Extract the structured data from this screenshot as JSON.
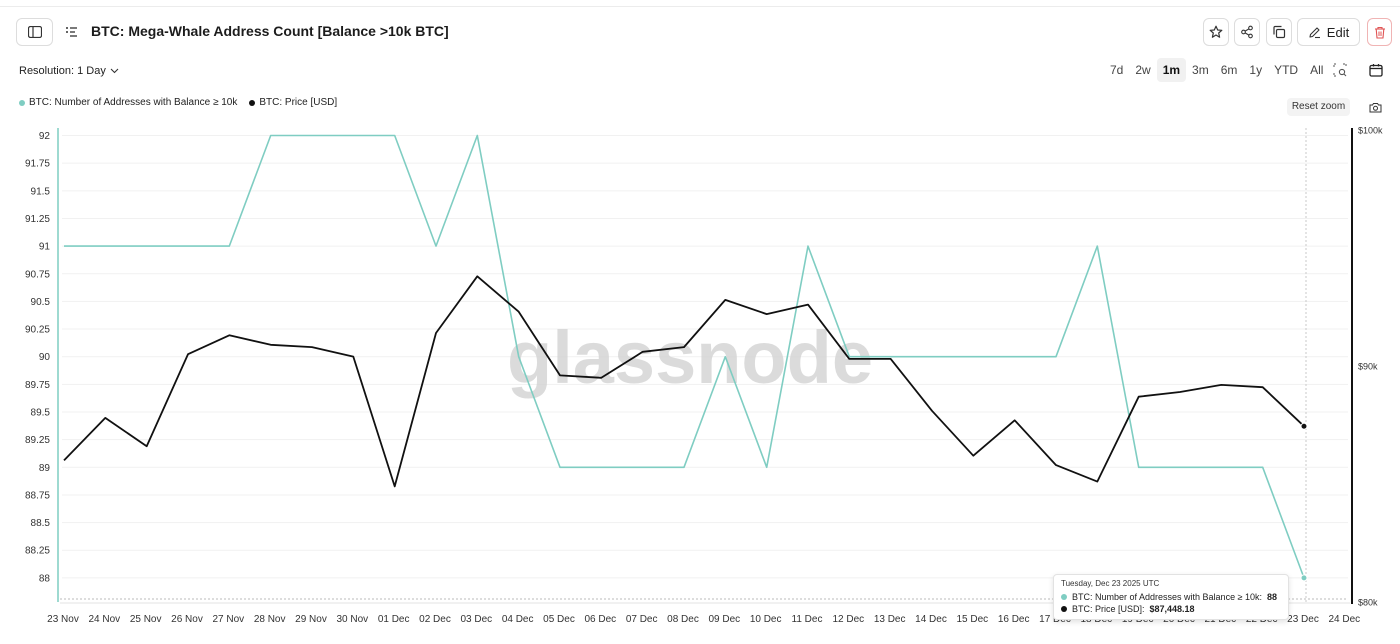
{
  "header": {
    "title": "BTC: Mega-Whale Address Count [Balance >10k BTC]",
    "edit_label": "Edit"
  },
  "icons": {
    "sidebar": "sidebar-toggle-icon",
    "list": "list-icon",
    "star": "star-icon",
    "share": "share-icon",
    "copy": "copy-icon",
    "edit": "pencil-icon",
    "delete": "trash-icon",
    "calendar": "calendar-icon",
    "camera": "camera-icon",
    "zoom": "zoom-select-icon",
    "chevron": "chevron-down-icon"
  },
  "controls": {
    "resolution_label": "Resolution: 1 Day",
    "ranges": [
      "7d",
      "2w",
      "1m",
      "3m",
      "6m",
      "1y",
      "YTD",
      "All"
    ],
    "active_range": "1m",
    "reset_zoom_label": "Reset zoom"
  },
  "colors": {
    "addresses": "#7fcdc2",
    "price": "#111111",
    "delete": "#e05454",
    "watermark": "#d0d0d0"
  },
  "watermark": "glassnode",
  "tooltip": {
    "date": "Tuesday, Dec 23 2025 UTC",
    "rows": [
      {
        "label": "BTC: Number of Addresses with Balance ≥ 10k:",
        "value": "88"
      },
      {
        "label": "BTC: Price [USD]:",
        "value": "$87,448.18"
      }
    ]
  },
  "chart_data": {
    "type": "line",
    "x": [
      "23 Nov",
      "24 Nov",
      "25 Nov",
      "26 Nov",
      "27 Nov",
      "28 Nov",
      "29 Nov",
      "30 Nov",
      "01 Dec",
      "02 Dec",
      "03 Dec",
      "04 Dec",
      "05 Dec",
      "06 Dec",
      "07 Dec",
      "08 Dec",
      "09 Dec",
      "10 Dec",
      "11 Dec",
      "12 Dec",
      "13 Dec",
      "14 Dec",
      "15 Dec",
      "16 Dec",
      "17 Dec",
      "18 Dec",
      "19 Dec",
      "20 Dec",
      "21 Dec",
      "22 Dec",
      "23 Dec"
    ],
    "x_ticks": [
      "23 Nov",
      "24 Nov",
      "25 Nov",
      "26 Nov",
      "27 Nov",
      "28 Nov",
      "29 Nov",
      "30 Nov",
      "01 Dec",
      "02 Dec",
      "03 Dec",
      "04 Dec",
      "05 Dec",
      "06 Dec",
      "07 Dec",
      "08 Dec",
      "09 Dec",
      "10 Dec",
      "11 Dec",
      "12 Dec",
      "13 Dec",
      "14 Dec",
      "15 Dec",
      "16 Dec",
      "17 Dec",
      "18 Dec",
      "19 Dec",
      "20 Dec",
      "21 Dec",
      "22 Dec",
      "23 Dec",
      "24 Dec"
    ],
    "series": [
      {
        "name": "BTC: Number of Addresses with Balance ≥ 10k",
        "axis": "left",
        "color": "#7fcdc2",
        "values": [
          91,
          91,
          91,
          91,
          91,
          92,
          92,
          92,
          92,
          91,
          92,
          90,
          89,
          89,
          89,
          89,
          90,
          89,
          91,
          90,
          90,
          90,
          90,
          90,
          90,
          91,
          89,
          89,
          89,
          89,
          88
        ]
      },
      {
        "name": "BTC: Price [USD]",
        "axis": "right",
        "color": "#111111",
        "values": [
          86000,
          87800,
          86600,
          90500,
          91300,
          90900,
          90800,
          90400,
          84900,
          91400,
          93800,
          92300,
          89600,
          89500,
          90600,
          90800,
          92800,
          92200,
          92600,
          90300,
          90300,
          88100,
          86200,
          87700,
          85800,
          85100,
          88700,
          88900,
          89200,
          89100,
          87448.18
        ]
      }
    ],
    "y_left": {
      "ticks": [
        88,
        88.25,
        88.5,
        88.75,
        89,
        89.25,
        89.5,
        89.75,
        90,
        90.25,
        90.5,
        90.75,
        91,
        91.25,
        91.5,
        91.75,
        92
      ],
      "ylim": [
        87.8,
        92.05
      ]
    },
    "y_right": {
      "ticks": [
        "$80k",
        "$90k",
        "$100k"
      ],
      "tick_values": [
        80000,
        90000,
        100000
      ],
      "ylim": [
        80000,
        100000
      ]
    },
    "legend": "top-left",
    "grid": true
  }
}
